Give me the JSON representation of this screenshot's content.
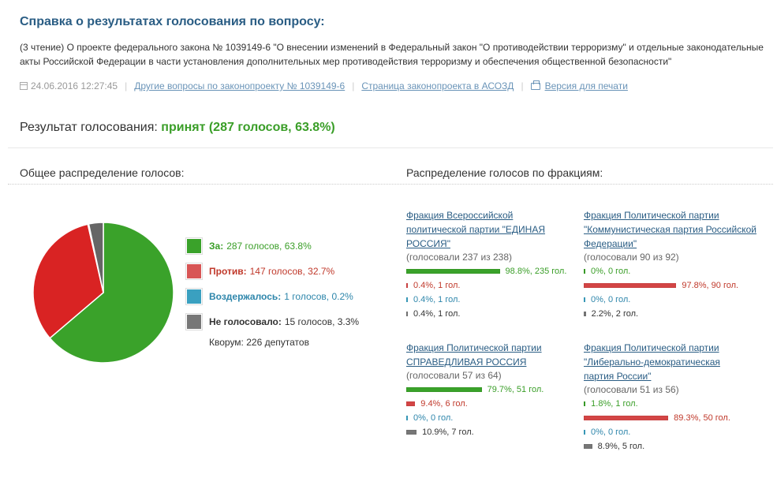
{
  "header": {
    "title": "Справка о результатах голосования по вопросу:",
    "subject": "(3 чтение) О проекте федерального закона № 1039149-6 \"О внесении изменений в Федеральный закон \"О противодействии терроризму\" и отдельные законодательные акты Российской Федерации в части установления дополнительных мер противодействия терроризму и обеспечения общественной безопасности\"",
    "datetime": "24.06.2016 12:27:45",
    "link_other": "Другие вопросы по законопроекту № 1039149-6",
    "link_asozd": "Страница законопроекта в АСОЗД",
    "link_print": "Версия для печати",
    "icons": {
      "date": "calendar-icon",
      "print": "printer-icon"
    }
  },
  "result": {
    "label": "Результат голосования:",
    "value": "принят (287 голосов, 63.8%)"
  },
  "overall": {
    "heading": "Общее распределение голосов:",
    "items": [
      {
        "label": "За:",
        "value": "287 голосов, 63.8%",
        "share": 287,
        "color": "#3aa22a"
      },
      {
        "label": "Против:",
        "value": "147 голосов, 32.7%",
        "share": 147,
        "color": "#d92323"
      },
      {
        "label": "Воздержалось:",
        "value": "1 голосов, 0.2%",
        "share": 1,
        "color": "#3aa0c0"
      },
      {
        "label": "Не голосовало:",
        "value": "15 голосов, 3.3%",
        "share": 15,
        "color": "#666666"
      }
    ],
    "quorum": "Кворум: 226 депутатов"
  },
  "factions": {
    "heading": "Распределение голосов по фракциям:",
    "list": [
      {
        "name": "Фракция Всероссийской политической партии \"ЕДИНАЯ РОССИЯ\"",
        "voted": "(голосовали 237 из 238)",
        "rows": [
          {
            "pct": 98.8,
            "text": "98.8%, 235 гол."
          },
          {
            "pct": 0.4,
            "text": "0.4%, 1 гол."
          },
          {
            "pct": 0.4,
            "text": "0.4%, 1 гол."
          },
          {
            "pct": 0.4,
            "text": "0.4%, 1 гол."
          }
        ]
      },
      {
        "name": "Фракция Политической партии \"Коммунистическая партия Российской Федерации\"",
        "voted": "(голосовали 90 из 92)",
        "rows": [
          {
            "pct": 0,
            "text": "0%, 0 гол."
          },
          {
            "pct": 97.8,
            "text": "97.8%, 90 гол."
          },
          {
            "pct": 0,
            "text": "0%, 0 гол."
          },
          {
            "pct": 2.2,
            "text": "2.2%, 2 гол."
          }
        ]
      },
      {
        "name": "Фракция Политической партии СПРАВЕДЛИВАЯ РОССИЯ",
        "voted": "(голосовали 57 из 64)",
        "rows": [
          {
            "pct": 79.7,
            "text": "79.7%, 51 гол."
          },
          {
            "pct": 9.4,
            "text": "9.4%, 6 гол."
          },
          {
            "pct": 0,
            "text": "0%, 0 гол."
          },
          {
            "pct": 10.9,
            "text": "10.9%, 7 гол."
          }
        ]
      },
      {
        "name": "Фракция Политической партии \"Либерально-демократическая партия России\"",
        "voted": "(голосовали 51 из 56)",
        "rows": [
          {
            "pct": 1.8,
            "text": "1.8%, 1 гол."
          },
          {
            "pct": 89.3,
            "text": "89.3%, 50 гол."
          },
          {
            "pct": 0,
            "text": "0%, 0 гол."
          },
          {
            "pct": 8.9,
            "text": "8.9%, 5 гол."
          }
        ]
      }
    ]
  },
  "chart_data": {
    "type": "pie",
    "categories": [
      "За",
      "Против",
      "Воздержалось",
      "Не голосовало"
    ],
    "values": [
      287,
      147,
      1,
      15
    ],
    "colors": [
      "#3aa22a",
      "#d92323",
      "#3aa0c0",
      "#666666"
    ]
  }
}
